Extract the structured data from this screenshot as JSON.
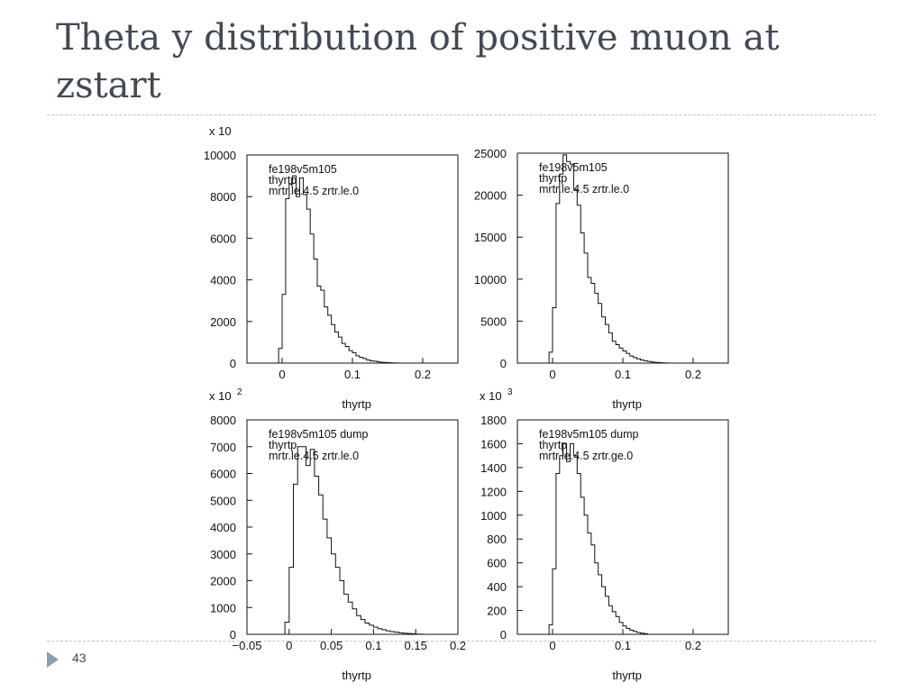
{
  "slide": {
    "title": "Theta y distribution of positive muon at zstart",
    "page_number": "43"
  },
  "colors": {
    "title": "#444a55",
    "footer_accent": "#8aa0b4",
    "plot_line": "#111111"
  },
  "icons": {
    "footer": "triangle-right-icon"
  },
  "chart_data": [
    {
      "type": "bar",
      "style": "step-histogram",
      "title": "",
      "xlabel": "thyrtp",
      "ylabel": "",
      "scale_label": "x 10",
      "xlim": [
        -0.05,
        0.25
      ],
      "ylim": [
        0,
        10000
      ],
      "x_ticks": [
        0,
        0.1,
        0.2
      ],
      "x_tick_labels": [
        "0",
        "0.1",
        "0.2"
      ],
      "y_ticks": [
        0,
        2000,
        4000,
        6000,
        8000,
        10000
      ],
      "y_tick_labels": [
        "0",
        "2000",
        "4000",
        "6000",
        "8000",
        "10000"
      ],
      "annotations": [
        "fe198v5m105",
        "thyrtp",
        "mrtr.le.4.5 zrtr.le.0"
      ],
      "bin_start": -0.01,
      "bin_width": 0.005,
      "values": [
        0,
        700,
        3300,
        7900,
        8600,
        9000,
        8000,
        8900,
        8100,
        7400,
        6200,
        5000,
        3700,
        3500,
        2700,
        2300,
        1850,
        1500,
        1250,
        950,
        800,
        600,
        500,
        350,
        280,
        220,
        150,
        110,
        90,
        60,
        40,
        30,
        20,
        10,
        5,
        0
      ]
    },
    {
      "type": "bar",
      "style": "step-histogram",
      "title": "",
      "xlabel": "thyrtp",
      "ylabel": "",
      "scale_label": "",
      "xlim": [
        -0.05,
        0.25
      ],
      "ylim": [
        0,
        25000
      ],
      "x_ticks": [
        0,
        0.1,
        0.2
      ],
      "x_tick_labels": [
        "0",
        "0.1",
        "0.2"
      ],
      "y_ticks": [
        0,
        5000,
        10000,
        15000,
        20000,
        25000
      ],
      "y_tick_labels": [
        "0",
        "5000",
        "10000",
        "15000",
        "20000",
        "25000"
      ],
      "annotations": [
        "fe198v5m105",
        "thyrtp",
        "mrtr.le.4.5 zrtr.le.0"
      ],
      "bin_start": -0.01,
      "bin_width": 0.005,
      "values": [
        0,
        1300,
        6600,
        19000,
        22500,
        24800,
        24000,
        23700,
        20700,
        18800,
        15500,
        13100,
        10200,
        9500,
        8300,
        7100,
        5500,
        4600,
        3600,
        2600,
        2200,
        1800,
        1450,
        1150,
        850,
        650,
        500,
        380,
        280,
        200,
        140,
        90,
        60,
        30,
        10,
        0
      ]
    },
    {
      "type": "bar",
      "style": "step-histogram",
      "title": "",
      "xlabel": "thyrtp",
      "ylabel": "",
      "scale_label": "x 10",
      "scale_exponent": "2",
      "xlim": [
        -0.05,
        0.2
      ],
      "ylim": [
        0,
        8000
      ],
      "x_ticks": [
        -0.05,
        0,
        0.05,
        0.1,
        0.15,
        0.2
      ],
      "x_tick_labels": [
        "−0.05",
        "0",
        "0.05",
        "0.1",
        "0.15",
        "0.2"
      ],
      "y_ticks": [
        0,
        1000,
        2000,
        3000,
        4000,
        5000,
        6000,
        7000,
        8000
      ],
      "y_tick_labels": [
        "0",
        "1000",
        "2000",
        "3000",
        "4000",
        "5000",
        "6000",
        "7000",
        "8000"
      ],
      "annotations": [
        "fe198v5m105 dump",
        "thyrtp",
        "mrtr.le.4.5 zrtr.le.0"
      ],
      "bin_start": -0.01,
      "bin_width": 0.005,
      "values": [
        0,
        450,
        2500,
        5600,
        7000,
        7000,
        6300,
        6900,
        5900,
        5200,
        4300,
        3600,
        3000,
        2500,
        2000,
        1500,
        1200,
        950,
        700,
        550,
        420,
        340,
        270,
        210,
        170,
        130,
        100,
        80,
        60,
        40,
        30,
        20,
        10,
        5,
        0
      ]
    },
    {
      "type": "bar",
      "style": "step-histogram",
      "title": "",
      "xlabel": "thyrtp",
      "ylabel": "",
      "scale_label": "x 10",
      "scale_exponent": "3",
      "xlim": [
        -0.05,
        0.25
      ],
      "ylim": [
        0,
        1800
      ],
      "x_ticks": [
        0,
        0.1,
        0.2
      ],
      "x_tick_labels": [
        "0",
        "0.1",
        "0.2"
      ],
      "y_ticks": [
        0,
        200,
        400,
        600,
        800,
        1000,
        1200,
        1400,
        1600,
        1800
      ],
      "y_tick_labels": [
        "0",
        "200",
        "400",
        "600",
        "800",
        "1000",
        "1200",
        "1400",
        "1600",
        "1800"
      ],
      "annotations": [
        "fe198v5m105 dump",
        "thyrtp",
        "mrtr.le.4.5 zrtr.ge.0"
      ],
      "bin_start": -0.01,
      "bin_width": 0.005,
      "values": [
        0,
        80,
        550,
        1350,
        1500,
        1600,
        1450,
        1600,
        1500,
        1350,
        1150,
        1000,
        850,
        750,
        600,
        500,
        400,
        320,
        240,
        190,
        150,
        100,
        70,
        50,
        35,
        25,
        15,
        10,
        5,
        0
      ]
    }
  ]
}
